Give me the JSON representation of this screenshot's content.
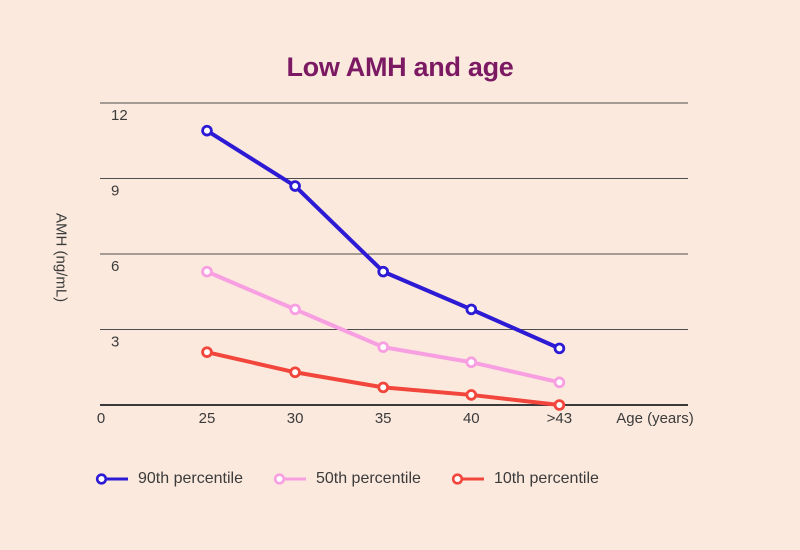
{
  "chart_data": {
    "type": "line",
    "title": "Low AMH and age",
    "xlabel": "Age (years)",
    "ylabel": "AMH (ng/mL)",
    "categories": [
      "25",
      "30",
      "35",
      "40",
      ">43"
    ],
    "origin_label": "0",
    "y_ticks": [
      3,
      6,
      9,
      12
    ],
    "ylim": [
      0,
      12
    ],
    "grid": true,
    "legend_position": "bottom",
    "series": [
      {
        "name": "90th percentile",
        "color": "#2c1ad4",
        "values": [
          10.9,
          8.7,
          5.3,
          3.8,
          2.25
        ]
      },
      {
        "name": "50th percentile",
        "color": "#f89fe2",
        "values": [
          5.3,
          3.8,
          2.3,
          1.7,
          0.9
        ]
      },
      {
        "name": "10th percentile",
        "color": "#f2453c",
        "values": [
          2.1,
          1.3,
          0.7,
          0.4,
          0
        ]
      }
    ]
  },
  "colors": {
    "background": "#fbe9dd",
    "title": "#7b1962",
    "axis": "#3a3a3a",
    "grid": "#4d4d4d",
    "text": "#3b3b3b",
    "marker_fill": "#ffffff"
  }
}
